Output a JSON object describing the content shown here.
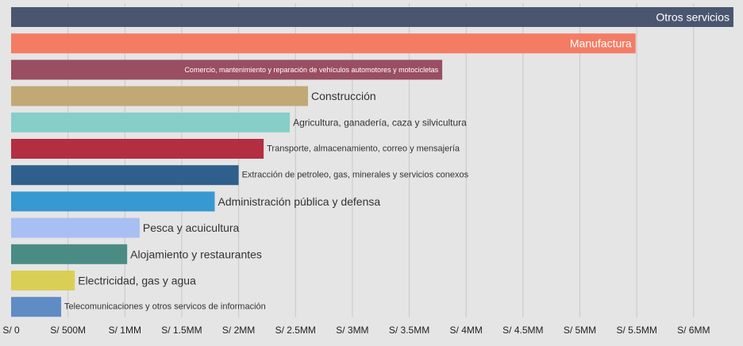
{
  "chart_data": {
    "type": "bar",
    "orientation": "horizontal",
    "categories": [
      "Otros servicios",
      "Manufactura",
      "Comercio, mantenimiento y reparación de vehículos automotores y motocicletas",
      "Construcción",
      "Agricultura, ganadería, caza y silvicultura",
      "Transporte, almacenamiento, correo y mensajería",
      "Extracción de petroleo, gas, minerales y servicios conexos",
      "Administración pública y defensa",
      "Pesca y acuicultura",
      "Alojamiento y restaurantes",
      "Electricidad, gas y agua",
      "Telecomunicaciones y otros servicos de información"
    ],
    "values": [
      6350000,
      5490000,
      3790000,
      2610000,
      2450000,
      2220000,
      2000000,
      1790000,
      1130000,
      1020000,
      560000,
      440000
    ],
    "colors": [
      "#4a5670",
      "#f47c64",
      "#9a4e62",
      "#c2a874",
      "#86cfc8",
      "#b42e42",
      "#2f5f8c",
      "#3799d2",
      "#a8bff4",
      "#4a8c84",
      "#dacf56",
      "#5f8cc4"
    ],
    "label_colors": [
      "#ffffff",
      "#ffffff",
      "#ffffff",
      "#333333",
      "#333333",
      "#333333",
      "#333333",
      "#333333",
      "#333333",
      "#333333",
      "#333333",
      "#333333"
    ],
    "label_inside": [
      true,
      true,
      true,
      false,
      false,
      false,
      false,
      false,
      false,
      false,
      false,
      false
    ],
    "xlim": [
      0,
      6500000
    ],
    "x_ticks": [
      0,
      500000,
      1000000,
      1500000,
      2000000,
      2500000,
      3000000,
      3500000,
      4000000,
      4500000,
      5000000,
      5500000,
      6000000
    ],
    "x_tick_labels": [
      "S/ 0",
      "S/ 500M",
      "S/ 1MM",
      "S/ 1.5MM",
      "S/ 2MM",
      "S/ 2.5MM",
      "S/ 3MM",
      "S/ 3.5MM",
      "S/ 4MM",
      "S/ 4.5MM",
      "S/ 5MM",
      "S/ 5.5MM",
      "S/ 6MM"
    ],
    "grid": true,
    "legend": "none",
    "title": "",
    "xlabel": "",
    "ylabel": ""
  }
}
